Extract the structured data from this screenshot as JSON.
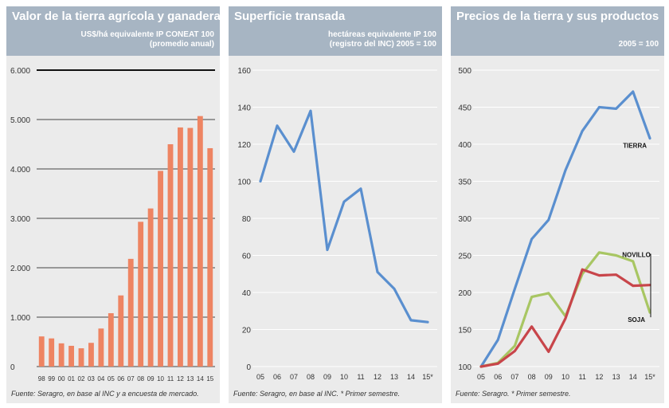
{
  "chart_data": [
    {
      "type": "bar",
      "title": "Valor de la tierra agrícola y ganadera",
      "subtitle_line1": "US$/há equivalente IP CONEAT 100",
      "subtitle_line2": "(promedio anual)",
      "categories": [
        "98",
        "99",
        "00",
        "01",
        "02",
        "03",
        "04",
        "05",
        "06",
        "07",
        "08",
        "09",
        "10",
        "11",
        "12",
        "13",
        "14",
        "15"
      ],
      "values": [
        610,
        570,
        470,
        420,
        370,
        480,
        770,
        1080,
        1440,
        2180,
        2930,
        3200,
        3960,
        4500,
        4840,
        4830,
        5070,
        4420
      ],
      "ylim": [
        0,
        6000
      ],
      "yticks": [
        0,
        1000,
        2000,
        3000,
        4000,
        5000,
        6000
      ],
      "ytick_labels": [
        "0",
        "1.000",
        "2.000",
        "3.000",
        "4.000",
        "5.000",
        "6.000"
      ],
      "color": "#ee8462",
      "source": "Fuente: Seragro, en base al INC y a encuesta de mercado."
    },
    {
      "type": "line",
      "title": "Superficie transada",
      "subtitle_line1": "hectáreas equivalente IP 100",
      "subtitle_line2": "(registro del INC) 2005 = 100",
      "x": [
        "05",
        "06",
        "07",
        "08",
        "09",
        "10",
        "11",
        "12",
        "13",
        "14",
        "15*"
      ],
      "series": [
        {
          "name": "Superficie transada",
          "color": "#5a8fcf",
          "values": [
            100,
            130,
            116,
            138,
            63,
            89,
            96,
            51,
            42,
            25,
            24
          ]
        }
      ],
      "ylim": [
        0,
        160
      ],
      "yticks": [
        0,
        20,
        40,
        60,
        80,
        100,
        120,
        140,
        160
      ],
      "source": "Fuente: Seragro, en base al INC. * Primer semestre."
    },
    {
      "type": "line",
      "title": "Precios de la tierra y sus productos",
      "subtitle_line1": "2005 = 100",
      "x": [
        "05",
        "06",
        "07",
        "08",
        "09",
        "10",
        "11",
        "12",
        "13",
        "14",
        "15*"
      ],
      "series": [
        {
          "name": "TIERRA",
          "color": "#5a8fcf",
          "values": [
            100,
            136,
            205,
            272,
            298,
            365,
            418,
            450,
            448,
            471,
            408
          ]
        },
        {
          "name": "NOVILLO",
          "color": "#a8c663",
          "values": [
            100,
            105,
            128,
            194,
            199,
            168,
            225,
            254,
            250,
            242,
            173
          ]
        },
        {
          "name": "SOJA",
          "color": "#c8454a",
          "values": [
            100,
            104,
            121,
            154,
            120,
            165,
            231,
            223,
            224,
            209,
            210
          ]
        }
      ],
      "ylim": [
        100,
        500
      ],
      "yticks": [
        100,
        150,
        200,
        250,
        300,
        350,
        400,
        450,
        500
      ],
      "source": "Fuente: Seragro. * Primer semestre."
    }
  ]
}
